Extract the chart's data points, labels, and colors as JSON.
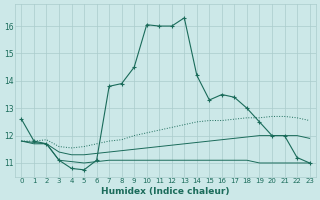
{
  "xlabel": "Humidex (Indice chaleur)",
  "bg_color": "#cce8e8",
  "grid_color": "#aacccc",
  "line_color": "#1a6b5a",
  "ylim": [
    10.5,
    16.8
  ],
  "yticks": [
    11,
    12,
    13,
    14,
    15,
    16
  ],
  "x_ticks": [
    0,
    1,
    2,
    3,
    4,
    5,
    6,
    7,
    8,
    9,
    10,
    11,
    12,
    13,
    14,
    15,
    16,
    17,
    18,
    19,
    20,
    21,
    22,
    23
  ],
  "main_y": [
    12.6,
    11.8,
    11.7,
    11.1,
    10.8,
    10.75,
    11.1,
    13.8,
    13.9,
    14.5,
    16.05,
    16.0,
    16.0,
    16.3,
    14.2,
    13.3,
    13.5,
    13.4,
    13.0,
    12.5,
    12.0,
    12.0,
    11.2,
    11.0
  ],
  "flat_y": [
    11.8,
    11.7,
    11.7,
    11.1,
    11.05,
    11.0,
    11.05,
    11.1,
    11.1,
    11.1,
    11.1,
    11.1,
    11.1,
    11.1,
    11.1,
    11.1,
    11.1,
    11.1,
    11.1,
    11.0,
    11.0,
    11.0,
    11.0,
    11.0
  ],
  "mid_y": [
    11.8,
    11.75,
    11.7,
    11.4,
    11.3,
    11.3,
    11.35,
    11.4,
    11.45,
    11.5,
    11.55,
    11.6,
    11.65,
    11.7,
    11.75,
    11.8,
    11.85,
    11.9,
    11.95,
    12.0,
    12.0,
    12.0,
    12.0,
    11.9
  ],
  "trend_y": [
    11.8,
    11.8,
    11.85,
    11.6,
    11.55,
    11.6,
    11.7,
    11.8,
    11.85,
    12.0,
    12.1,
    12.2,
    12.3,
    12.4,
    12.5,
    12.55,
    12.55,
    12.6,
    12.65,
    12.65,
    12.7,
    12.7,
    12.65,
    12.55
  ]
}
